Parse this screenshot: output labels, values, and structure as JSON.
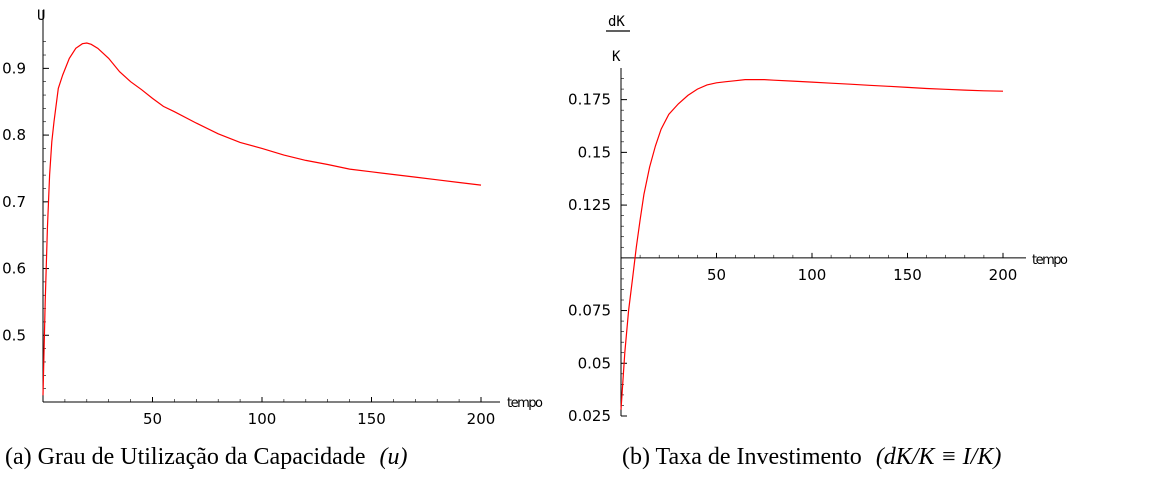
{
  "chart_data": [
    {
      "type": "line",
      "ylabel": "U",
      "xlabel": "tempo",
      "caption_prefix": "(a) Grau de Utilização da Capacidade",
      "caption_math": "(u)",
      "xlim": [
        0,
        200
      ],
      "ylim": [
        0.4,
        0.95
      ],
      "x_ticks": [
        50,
        100,
        150,
        200
      ],
      "y_ticks": [
        0.5,
        0.6,
        0.7,
        0.8,
        0.9
      ],
      "y_tick_labels": [
        "0.5",
        "0.6",
        "0.7",
        "0.8",
        "0.9"
      ],
      "series": [
        {
          "color": "#ff0000",
          "x": [
            0,
            1,
            2,
            3,
            4,
            5,
            7,
            9,
            12,
            15,
            18,
            20,
            22,
            25,
            30,
            35,
            40,
            45,
            50,
            55,
            60,
            70,
            80,
            90,
            100,
            110,
            120,
            130,
            140,
            150,
            160,
            170,
            180,
            190,
            200
          ],
          "y": [
            0.41,
            0.55,
            0.66,
            0.74,
            0.79,
            0.82,
            0.87,
            0.89,
            0.915,
            0.93,
            0.937,
            0.938,
            0.936,
            0.93,
            0.915,
            0.895,
            0.88,
            0.868,
            0.855,
            0.843,
            0.835,
            0.818,
            0.802,
            0.789,
            0.78,
            0.77,
            0.762,
            0.756,
            0.749,
            0.745,
            0.741,
            0.737,
            0.733,
            0.729,
            0.725
          ]
        }
      ]
    },
    {
      "type": "line",
      "ylabel_top": "dK",
      "ylabel_bottom": "K",
      "xlabel": "tempo",
      "caption_prefix": "(b) Taxa de Investimento",
      "caption_math": "(dK/K ≡ I/K)",
      "xlim": [
        0,
        200
      ],
      "ylim": [
        0.025,
        0.19
      ],
      "x_axis_at": 0.1,
      "x_ticks": [
        50,
        100,
        150,
        200
      ],
      "y_ticks": [
        0.025,
        0.05,
        0.075,
        0.125,
        0.15,
        0.175
      ],
      "y_tick_labels": [
        "0.025",
        "0.05",
        "0.075",
        "0.125",
        "0.15",
        "0.175"
      ],
      "series": [
        {
          "color": "#ff0000",
          "x": [
            0,
            2,
            4,
            6,
            8,
            10,
            12,
            15,
            18,
            21,
            25,
            30,
            35,
            40,
            45,
            50,
            55,
            60,
            65,
            70,
            75,
            80,
            90,
            100,
            110,
            120,
            130,
            140,
            150,
            160,
            170,
            180,
            190,
            200
          ],
          "y": [
            0.028,
            0.055,
            0.075,
            0.09,
            0.105,
            0.118,
            0.13,
            0.143,
            0.153,
            0.161,
            0.168,
            0.173,
            0.177,
            0.18,
            0.182,
            0.183,
            0.1835,
            0.184,
            0.1845,
            0.1845,
            0.1845,
            0.1842,
            0.1838,
            0.1833,
            0.1828,
            0.1823,
            0.1818,
            0.1813,
            0.1808,
            0.1803,
            0.1799,
            0.1795,
            0.1792,
            0.179
          ]
        }
      ]
    }
  ]
}
